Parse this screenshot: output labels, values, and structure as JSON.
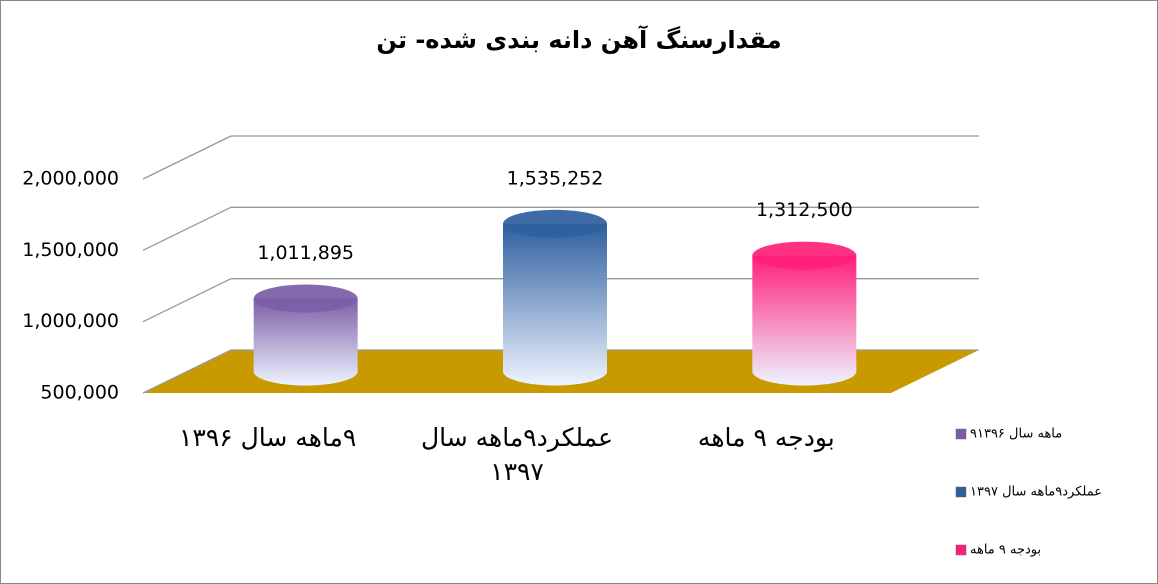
{
  "chart_data": {
    "type": "bar3d",
    "title": "مقدارسنگ آهن دانه بندی شده- تن",
    "categories": [
      "۹ماهه سال ۱۳۹۶",
      "عملکرد۹ماهه سال ۱۳۹۷",
      "بودجه ۹ ماهه"
    ],
    "values": [
      1011895,
      1535252,
      1312500
    ],
    "value_labels": [
      "1,011,895",
      "1,535,252",
      "1,312,500"
    ],
    "colors": [
      "#7b5ea7",
      "#2f5f9e",
      "#ff1f7a"
    ],
    "ylim": [
      500000,
      2000000
    ],
    "yticks": [
      {
        "value": 500000,
        "label": "500,000"
      },
      {
        "value": 1000000,
        "label": "1,000,000"
      },
      {
        "value": 1500000,
        "label": "1,500,000"
      },
      {
        "value": 2000000,
        "label": "2,000,000"
      }
    ],
    "grid": true,
    "legend": "right"
  }
}
